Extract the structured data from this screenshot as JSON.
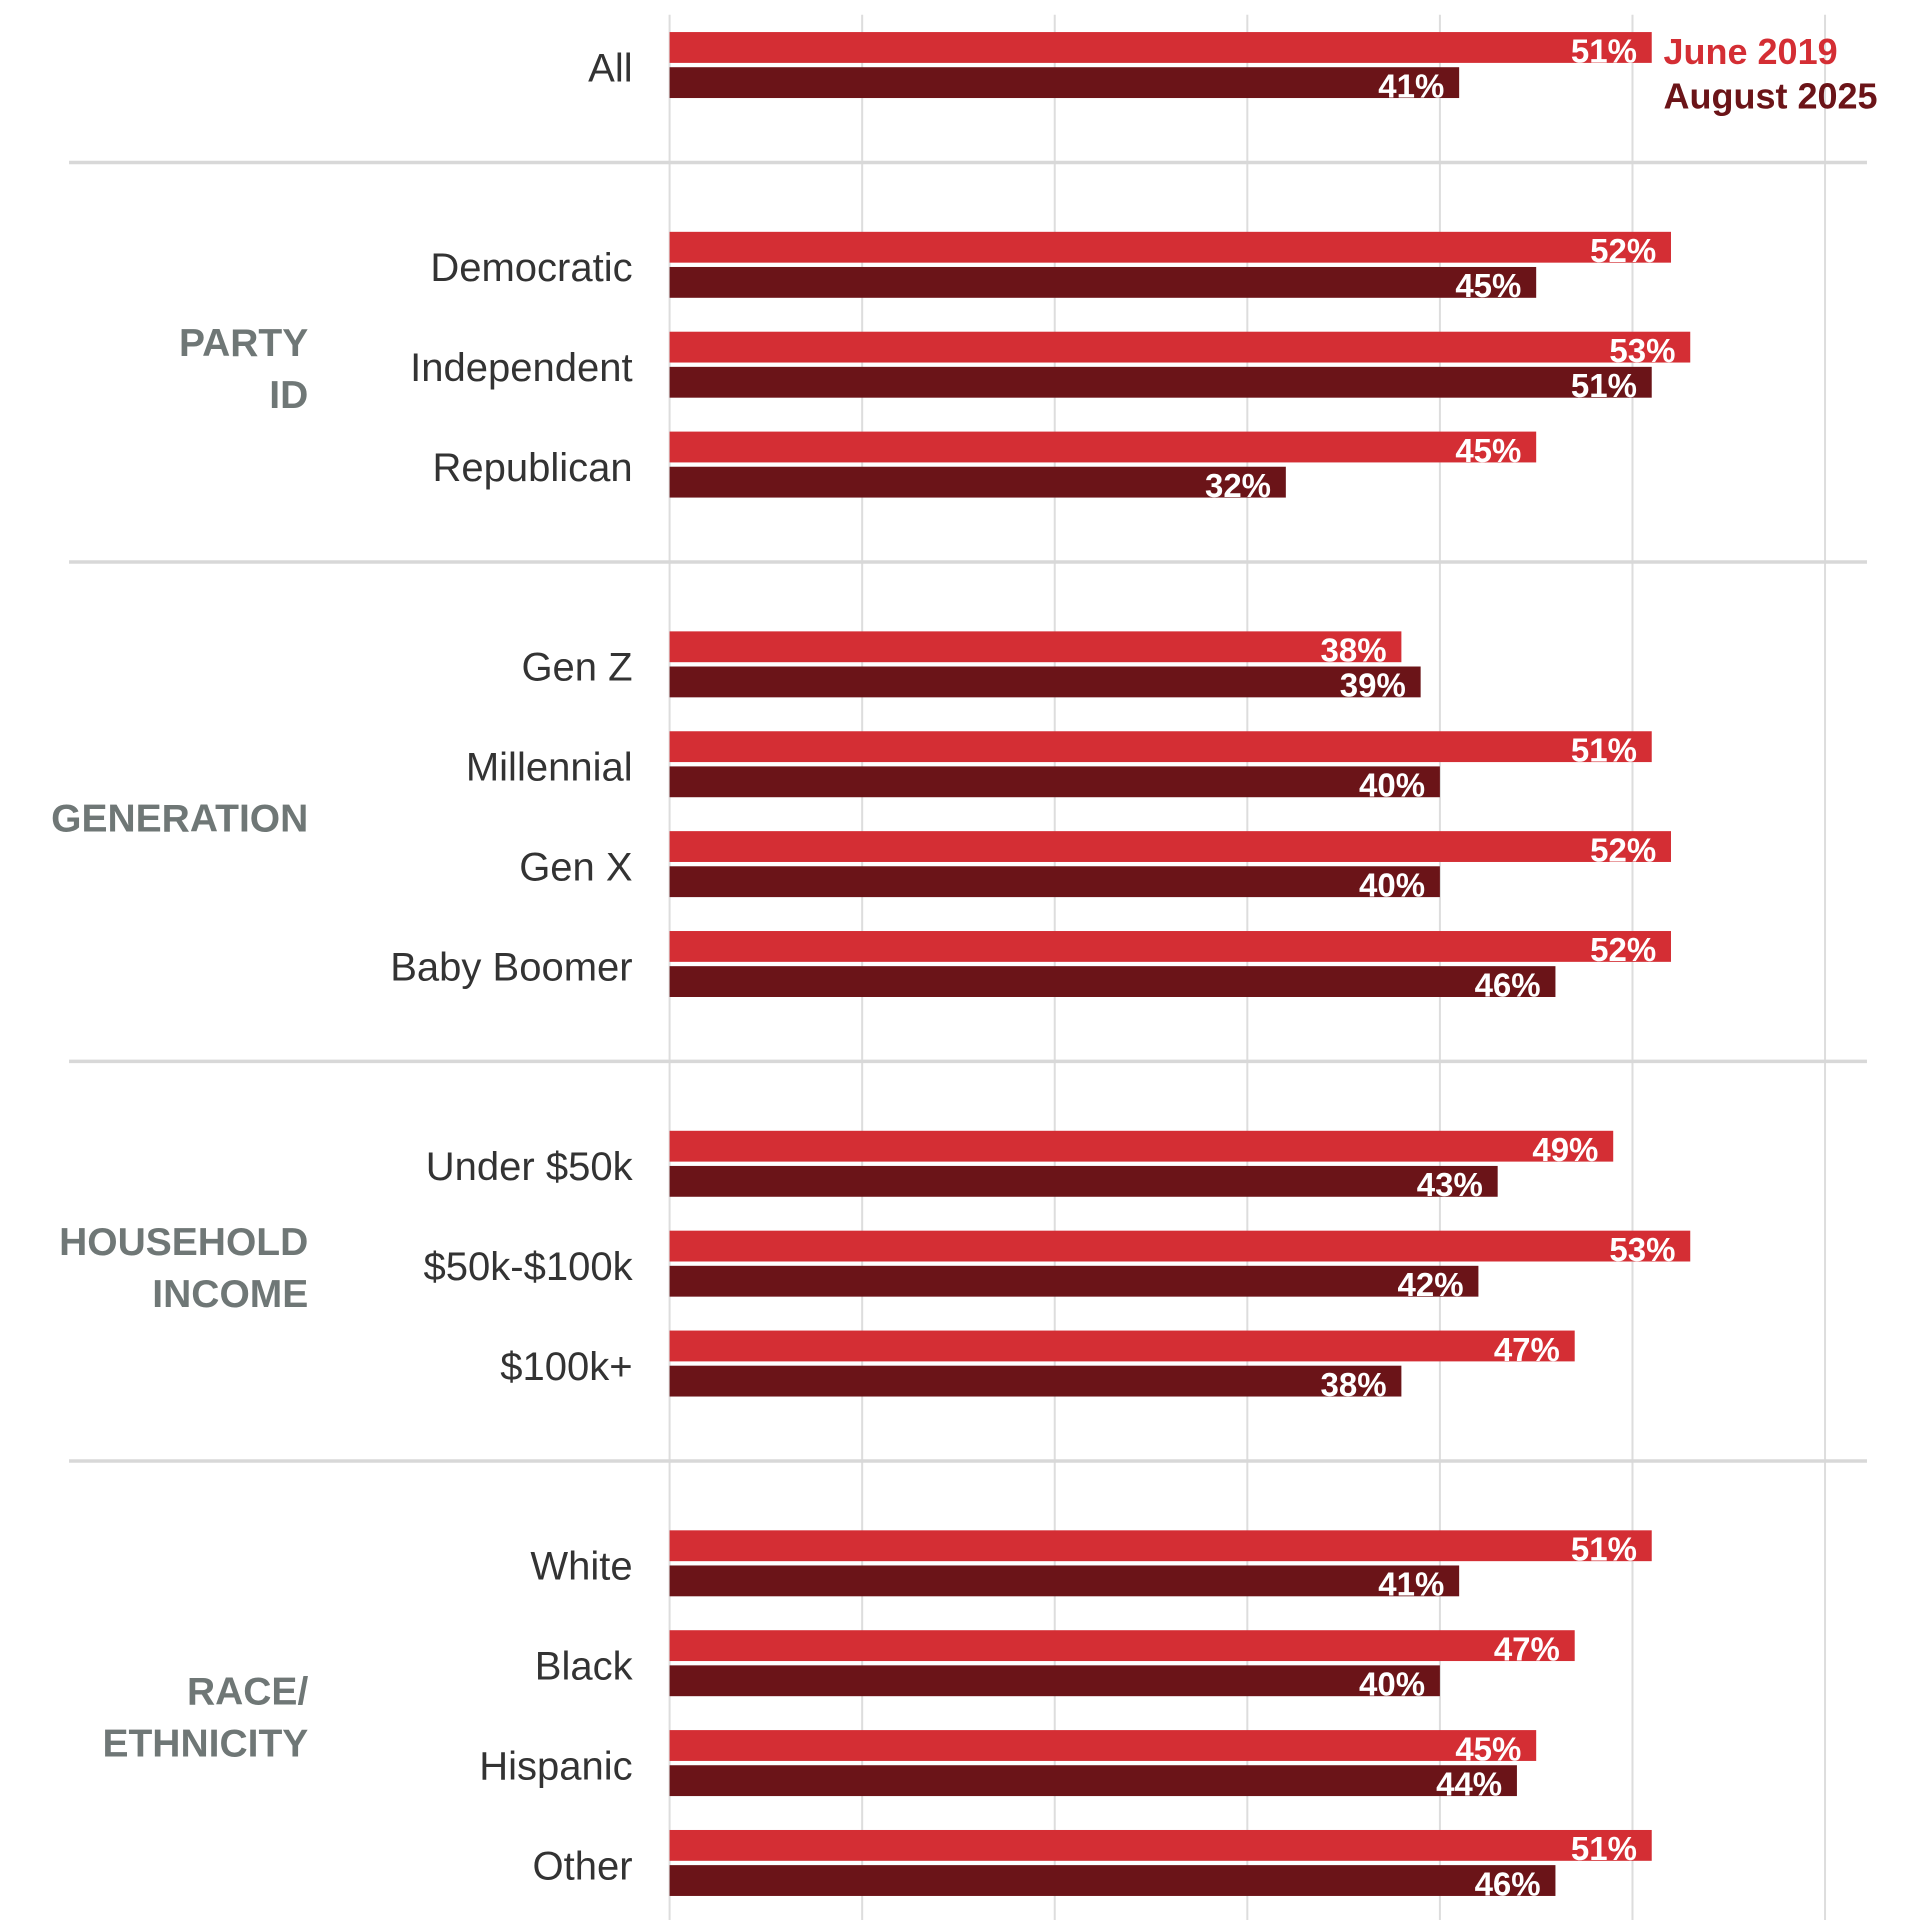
{
  "chart_data": {
    "type": "bar",
    "orientation": "horizontal",
    "xlim": [
      0,
      60
    ],
    "grid": true,
    "legend_position": "top-right",
    "series": [
      {
        "name": "June 2019",
        "color": "#d42e34"
      },
      {
        "name": "August 2025",
        "color": "#6b1418"
      }
    ],
    "groups": [
      {
        "label": "",
        "rows": [
          {
            "category": "All",
            "values": [
              51,
              41
            ]
          }
        ]
      },
      {
        "label": "PARTY ID",
        "rows": [
          {
            "category": "Democratic",
            "values": [
              52,
              45
            ]
          },
          {
            "category": "Independent",
            "values": [
              53,
              51
            ]
          },
          {
            "category": "Republican",
            "values": [
              45,
              32
            ]
          }
        ]
      },
      {
        "label": "GENERATION",
        "rows": [
          {
            "category": "Gen Z",
            "values": [
              38,
              39
            ]
          },
          {
            "category": "Millennial",
            "values": [
              51,
              40
            ]
          },
          {
            "category": "Gen X",
            "values": [
              52,
              40
            ]
          },
          {
            "category": "Baby Boomer",
            "values": [
              52,
              46
            ]
          }
        ]
      },
      {
        "label": "HOUSEHOLD INCOME",
        "rows": [
          {
            "category": "Under $50k",
            "values": [
              49,
              43
            ]
          },
          {
            "category": "$50k-$100k",
            "values": [
              53,
              42
            ]
          },
          {
            "category": "$100k+",
            "values": [
              47,
              38
            ]
          }
        ]
      },
      {
        "label": "RACE/ ETHNICITY",
        "rows": [
          {
            "category": "White",
            "values": [
              51,
              41
            ]
          },
          {
            "category": "Black",
            "values": [
              47,
              40
            ]
          },
          {
            "category": "Hispanic",
            "values": [
              45,
              44
            ]
          },
          {
            "category": "Other",
            "values": [
              51,
              46
            ]
          }
        ]
      }
    ]
  }
}
